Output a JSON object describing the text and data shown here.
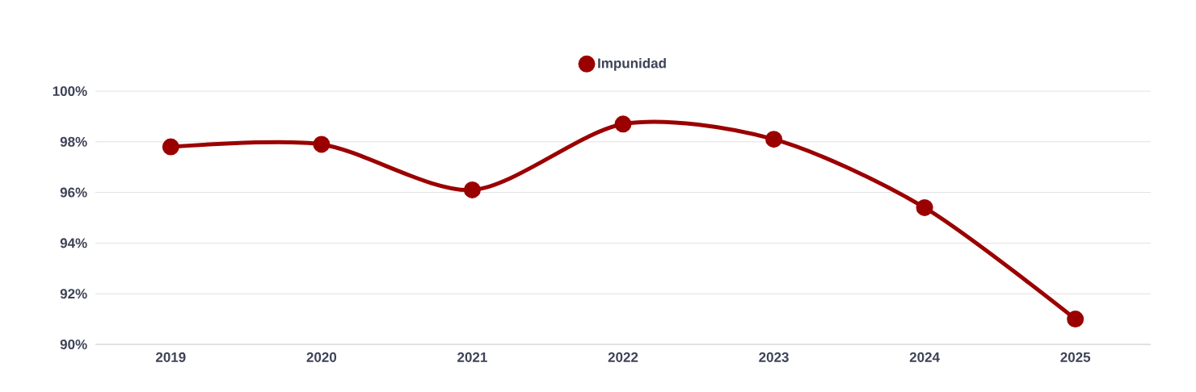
{
  "chart_data": {
    "type": "line",
    "categories": [
      "2019",
      "2020",
      "2021",
      "2022",
      "2023",
      "2024",
      "2025"
    ],
    "series": [
      {
        "name": "Impunidad",
        "color": "#9b0000",
        "values": [
          97.8,
          97.9,
          96.1,
          98.7,
          98.1,
          95.4,
          91.0
        ]
      }
    ],
    "ylim": [
      90,
      100
    ],
    "yticks": [
      {
        "value": 90,
        "label": "90%"
      },
      {
        "value": 92,
        "label": "92%"
      },
      {
        "value": 94,
        "label": "94%"
      },
      {
        "value": 96,
        "label": "96%"
      },
      {
        "value": 98,
        "label": "98%"
      },
      {
        "value": 100,
        "label": "100%"
      }
    ],
    "grid": "y",
    "legend": "top",
    "marker": "circle",
    "line_style": "solid"
  }
}
